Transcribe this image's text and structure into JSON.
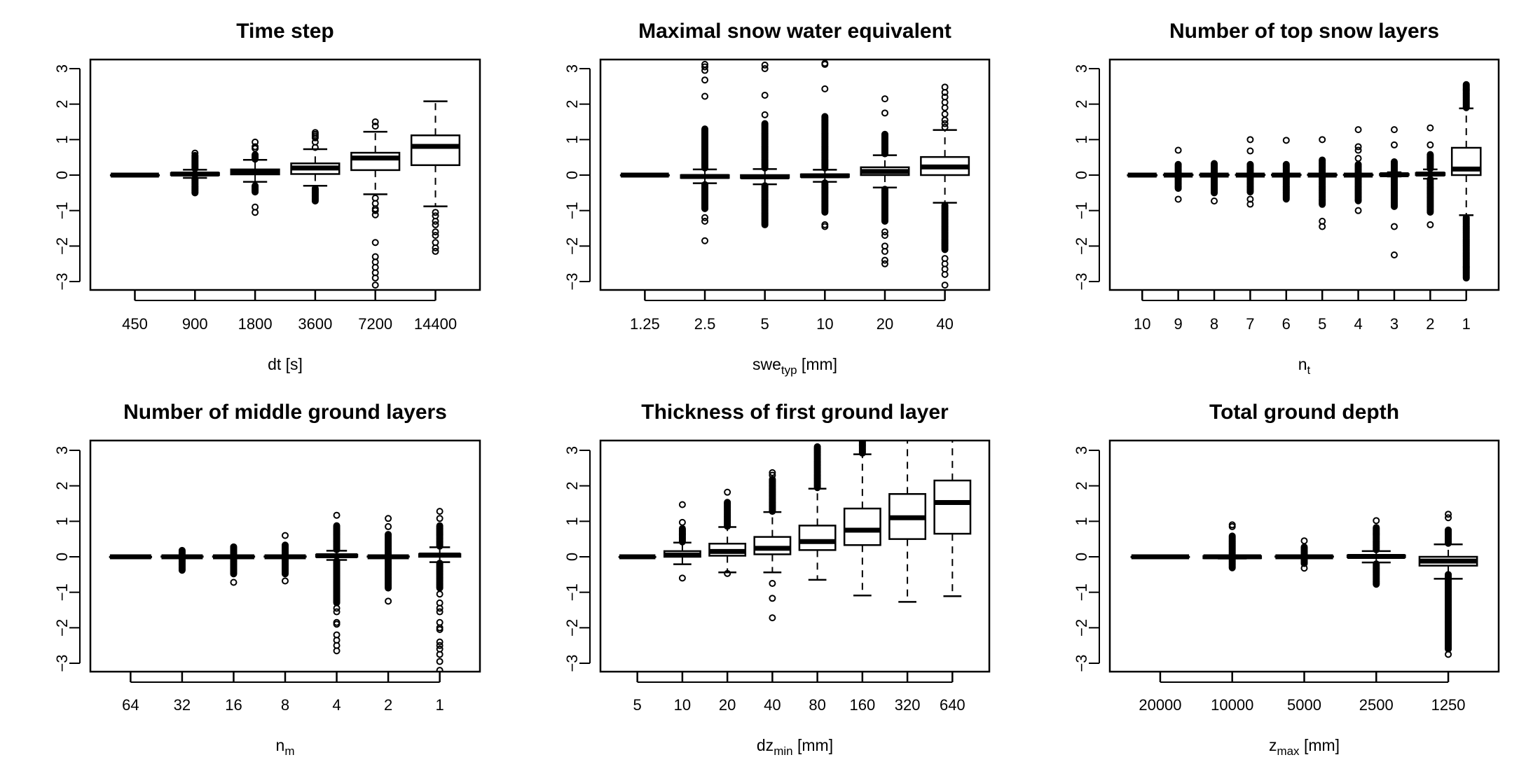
{
  "chart_data": [
    {
      "type": "box",
      "title": "Time step",
      "xlabel": {
        "main": "dt [s]",
        "sub": "",
        "suffix": ""
      },
      "ylim": [
        -3.2,
        3.2
      ],
      "y_ticks": [
        -3,
        -2,
        -1,
        0,
        1,
        2,
        3
      ],
      "y_tick_labels": [
        "−3",
        "−2",
        "−1",
        "0",
        "1",
        "2",
        "3"
      ],
      "categories": [
        "450",
        "900",
        "1800",
        "3600",
        "7200",
        "14400"
      ],
      "boxes": [
        {
          "stats": [
            0,
            0,
            0,
            0,
            0
          ],
          "outliers": [],
          "dense": []
        },
        {
          "stats": [
            -0.08,
            0.0,
            0.03,
            0.06,
            0.15
          ],
          "outliers": [
            0.62
          ],
          "dense": [
            [
              0.18,
              0.58
            ],
            [
              -0.1,
              -0.52
            ]
          ]
        },
        {
          "stats": [
            -0.19,
            0.02,
            0.08,
            0.16,
            0.43
          ],
          "outliers": [
            0.75,
            0.8,
            0.93,
            -0.9,
            -1.05
          ],
          "dense": [
            [
              0.45,
              0.6
            ],
            [
              -0.3,
              -0.5
            ]
          ]
        },
        {
          "stats": [
            -0.3,
            0.03,
            0.2,
            0.33,
            0.73
          ],
          "outliers": [
            0.78,
            0.93,
            1.05,
            1.1,
            1.15,
            1.2
          ],
          "dense": [
            [
              -0.38,
              -0.75
            ]
          ]
        },
        {
          "stats": [
            -0.54,
            0.14,
            0.48,
            0.63,
            1.22
          ],
          "outliers": [
            1.38,
            1.5,
            -0.65,
            -0.8,
            -0.95,
            -1.0,
            -1.12,
            -1.9,
            -2.3,
            -2.45,
            -2.6,
            -2.75,
            -2.9,
            -3.1
          ],
          "dense": []
        },
        {
          "stats": [
            -0.88,
            0.28,
            0.81,
            1.12,
            2.08
          ],
          "outliers": [
            -1.05,
            -1.15,
            -1.3,
            -1.4,
            -1.6,
            -1.7,
            -1.9,
            -2.05,
            -2.15
          ],
          "dense": []
        }
      ]
    },
    {
      "type": "box",
      "title": "Maximal snow water equivalent",
      "xlabel": {
        "main": "swe",
        "sub": "typ",
        "suffix": " [mm]"
      },
      "ylim": [
        -3.2,
        3.2
      ],
      "y_ticks": [
        -3,
        -2,
        -1,
        0,
        1,
        2,
        3
      ],
      "y_tick_labels": [
        "−3",
        "−2",
        "−1",
        "0",
        "1",
        "2",
        "3"
      ],
      "categories": [
        "1.25",
        "2.5",
        "5",
        "10",
        "20",
        "40"
      ],
      "boxes": [
        {
          "stats": [
            0,
            0,
            0,
            0,
            0
          ],
          "outliers": [],
          "dense": []
        },
        {
          "stats": [
            -0.23,
            -0.08,
            -0.04,
            0.0,
            0.16
          ],
          "outliers": [
            2.22,
            2.68,
            2.95,
            3.05,
            3.12,
            -1.2,
            -1.3,
            -1.85
          ],
          "dense": [
            [
              0.2,
              1.3
            ],
            [
              -0.27,
              -0.95
            ]
          ]
        },
        {
          "stats": [
            -0.26,
            -0.08,
            -0.05,
            0.0,
            0.17
          ],
          "outliers": [
            1.7,
            2.25,
            3.0,
            3.1
          ],
          "dense": [
            [
              0.2,
              1.45
            ],
            [
              -0.3,
              -1.4
            ]
          ]
        },
        {
          "stats": [
            -0.19,
            -0.05,
            -0.02,
            0.02,
            0.15
          ],
          "outliers": [
            2.43,
            3.12,
            3.15,
            -1.4,
            -1.45
          ],
          "dense": [
            [
              0.2,
              1.65
            ],
            [
              -0.22,
              -1.05
            ]
          ]
        },
        {
          "stats": [
            -0.35,
            0.0,
            0.1,
            0.22,
            0.56
          ],
          "outliers": [
            1.75,
            2.15,
            -1.6,
            -1.7,
            -2.0,
            -2.15,
            -2.4,
            -2.5
          ],
          "dense": [
            [
              0.6,
              1.15
            ],
            [
              -0.4,
              -1.3
            ]
          ]
        },
        {
          "stats": [
            -0.78,
            0.0,
            0.23,
            0.51,
            1.27
          ],
          "outliers": [
            1.35,
            1.45,
            1.55,
            1.72,
            1.9,
            2.05,
            2.2,
            2.33,
            2.48,
            -2.35,
            -2.5,
            -2.65,
            -2.8,
            -3.1
          ],
          "dense": [
            [
              -0.85,
              -2.1
            ]
          ]
        }
      ]
    },
    {
      "type": "box",
      "title": "Number of top snow layers",
      "xlabel": {
        "main": "n",
        "sub": "t",
        "suffix": ""
      },
      "ylim": [
        -3.2,
        3.2
      ],
      "y_ticks": [
        -3,
        -2,
        -1,
        0,
        1,
        2,
        3
      ],
      "y_tick_labels": [
        "−3",
        "−2",
        "−1",
        "0",
        "1",
        "2",
        "3"
      ],
      "categories": [
        "10",
        "9",
        "8",
        "7",
        "6",
        "5",
        "4",
        "3",
        "2",
        "1"
      ],
      "boxes": [
        {
          "stats": [
            0,
            0,
            0,
            0,
            0
          ],
          "outliers": [],
          "dense": []
        },
        {
          "stats": [
            -0.02,
            0,
            0,
            0.01,
            0.03
          ],
          "outliers": [
            0.7,
            -0.68
          ],
          "dense": [
            [
              0.05,
              0.3
            ],
            [
              -0.05,
              -0.4
            ]
          ]
        },
        {
          "stats": [
            -0.02,
            0,
            0,
            0.01,
            0.03
          ],
          "outliers": [
            -0.73
          ],
          "dense": [
            [
              0.05,
              0.35
            ],
            [
              -0.05,
              -0.52
            ]
          ]
        },
        {
          "stats": [
            -0.02,
            0,
            0,
            0.01,
            0.03
          ],
          "outliers": [
            0.68,
            1.0,
            -0.68,
            -0.82
          ],
          "dense": [
            [
              0.05,
              0.3
            ],
            [
              -0.05,
              -0.5
            ]
          ]
        },
        {
          "stats": [
            -0.02,
            0,
            0,
            0.01,
            0.03
          ],
          "outliers": [
            0.98
          ],
          "dense": [
            [
              0.05,
              0.3
            ],
            [
              -0.05,
              -0.7
            ]
          ]
        },
        {
          "stats": [
            -0.02,
            0,
            0,
            0.01,
            0.03
          ],
          "outliers": [
            1.0,
            -1.3,
            -1.45
          ],
          "dense": [
            [
              0.05,
              0.45
            ],
            [
              -0.05,
              -0.85
            ]
          ]
        },
        {
          "stats": [
            -0.02,
            0,
            0,
            0.01,
            0.03
          ],
          "outliers": [
            0.47,
            0.7,
            0.8,
            1.28,
            -1.0
          ],
          "dense": [
            [
              0.05,
              0.3
            ],
            [
              -0.05,
              -0.75
            ]
          ]
        },
        {
          "stats": [
            -0.04,
            0,
            0.01,
            0.03,
            0.08
          ],
          "outliers": [
            0.85,
            1.28,
            -1.45,
            -2.25
          ],
          "dense": [
            [
              0.1,
              0.4
            ],
            [
              -0.06,
              -0.9
            ]
          ]
        },
        {
          "stats": [
            -0.1,
            0.0,
            0.03,
            0.06,
            0.16
          ],
          "outliers": [
            0.85,
            1.33,
            -1.4
          ],
          "dense": [
            [
              0.18,
              0.6
            ],
            [
              -0.12,
              -1.05
            ]
          ]
        },
        {
          "stats": [
            -1.13,
            0.0,
            0.17,
            0.77,
            1.88
          ],
          "outliers": [],
          "dense": [
            [
              1.9,
              2.55
            ],
            [
              -1.2,
              -2.9
            ]
          ]
        }
      ]
    },
    {
      "type": "box",
      "title": "Number of middle ground layers",
      "xlabel": {
        "main": "n",
        "sub": "m",
        "suffix": ""
      },
      "ylim": [
        -3.2,
        3.2
      ],
      "y_ticks": [
        -3,
        -2,
        -1,
        0,
        1,
        2,
        3
      ],
      "y_tick_labels": [
        "−3",
        "−2",
        "−1",
        "0",
        "1",
        "2",
        "3"
      ],
      "categories": [
        "64",
        "32",
        "16",
        "8",
        "4",
        "2",
        "1"
      ],
      "boxes": [
        {
          "stats": [
            0,
            0,
            0,
            0,
            0
          ],
          "outliers": [],
          "dense": []
        },
        {
          "stats": [
            -0.01,
            0,
            0,
            0.01,
            0.02
          ],
          "outliers": [],
          "dense": [
            [
              0.03,
              0.18
            ],
            [
              -0.03,
              -0.4
            ]
          ]
        },
        {
          "stats": [
            -0.01,
            0,
            0,
            0.01,
            0.02
          ],
          "outliers": [
            -0.72
          ],
          "dense": [
            [
              0.03,
              0.3
            ],
            [
              -0.03,
              -0.5
            ]
          ]
        },
        {
          "stats": [
            -0.01,
            0,
            0,
            0.01,
            0.02
          ],
          "outliers": [
            0.6,
            -0.68
          ],
          "dense": [
            [
              0.03,
              0.35
            ],
            [
              -0.03,
              -0.5
            ]
          ]
        },
        {
          "stats": [
            -0.09,
            0.0,
            0.03,
            0.06,
            0.17
          ],
          "outliers": [
            1.17,
            -1.45,
            -1.55,
            -1.85,
            -1.9,
            -2.2,
            -2.35,
            -2.5,
            -2.65
          ],
          "dense": [
            [
              0.2,
              0.9
            ],
            [
              -0.12,
              -1.3
            ]
          ]
        },
        {
          "stats": [
            -0.01,
            0,
            0,
            0.01,
            0.02
          ],
          "outliers": [
            0.85,
            1.08,
            -1.25
          ],
          "dense": [
            [
              0.03,
              0.65
            ],
            [
              -0.03,
              -0.9
            ]
          ]
        },
        {
          "stats": [
            -0.15,
            0.0,
            0.05,
            0.08,
            0.27
          ],
          "outliers": [
            1.08,
            1.28,
            -1.05,
            -1.3,
            -1.45,
            -1.55,
            -1.85,
            -2.0,
            -2.05,
            -2.4,
            -2.5,
            -2.6,
            -2.75,
            -2.95,
            -3.2
          ],
          "dense": [
            [
              0.3,
              0.9
            ],
            [
              -0.18,
              -0.9
            ]
          ]
        }
      ]
    },
    {
      "type": "box",
      "title": "Thickness of first ground layer",
      "xlabel": {
        "main": "dz",
        "sub": "min",
        "suffix": " [mm]"
      },
      "ylim": [
        -3.2,
        3.2
      ],
      "y_ticks": [
        -3,
        -2,
        -1,
        0,
        1,
        2,
        3
      ],
      "y_tick_labels": [
        "−3",
        "−2",
        "−1",
        "0",
        "1",
        "2",
        "3"
      ],
      "categories": [
        "5",
        "10",
        "20",
        "40",
        "80",
        "160",
        "320",
        "640"
      ],
      "boxes": [
        {
          "stats": [
            0,
            0,
            0,
            0,
            0
          ],
          "outliers": [],
          "dense": []
        },
        {
          "stats": [
            -0.21,
            0.0,
            0.05,
            0.16,
            0.4
          ],
          "outliers": [
            0.97,
            1.47,
            -0.6
          ],
          "dense": [
            [
              0.42,
              0.8
            ]
          ]
        },
        {
          "stats": [
            -0.44,
            0.03,
            0.15,
            0.37,
            0.84
          ],
          "outliers": [
            1.82,
            -0.47
          ],
          "dense": [
            [
              0.86,
              1.55
            ]
          ]
        },
        {
          "stats": [
            -0.44,
            0.07,
            0.24,
            0.56,
            1.26
          ],
          "outliers": [
            2.3,
            2.37,
            -0.75,
            -1.17,
            -1.72
          ],
          "dense": [
            [
              1.28,
              2.2
            ]
          ]
        },
        {
          "stats": [
            -0.65,
            0.19,
            0.43,
            0.88,
            1.92
          ],
          "outliers": [],
          "dense": [
            [
              1.95,
              3.1
            ]
          ]
        },
        {
          "stats": [
            -1.09,
            0.33,
            0.75,
            1.36,
            2.89
          ],
          "outliers": [],
          "dense": [
            [
              2.92,
              3.25
            ]
          ]
        },
        {
          "stats": [
            -1.27,
            0.5,
            1.1,
            1.77,
            3.5
          ],
          "outliers": [],
          "dense": []
        },
        {
          "stats": [
            -1.11,
            0.65,
            1.53,
            2.15,
            3.5
          ],
          "outliers": [],
          "dense": []
        }
      ]
    },
    {
      "type": "box",
      "title": "Total ground depth",
      "xlabel": {
        "main": "z",
        "sub": "max",
        "suffix": " [mm]"
      },
      "ylim": [
        -3.2,
        3.2
      ],
      "y_ticks": [
        -3,
        -2,
        -1,
        0,
        1,
        2,
        3
      ],
      "y_tick_labels": [
        "−3",
        "−2",
        "−1",
        "0",
        "1",
        "2",
        "3"
      ],
      "categories": [
        "20000",
        "10000",
        "5000",
        "2500",
        "1250"
      ],
      "boxes": [
        {
          "stats": [
            0,
            0,
            0,
            0,
            0
          ],
          "outliers": [],
          "dense": []
        },
        {
          "stats": [
            -0.05,
            -0.04,
            0.0,
            0.02,
            0.04
          ],
          "outliers": [
            0.85,
            0.9
          ],
          "dense": [
            [
              0.06,
              0.6
            ],
            [
              -0.06,
              -0.32
            ]
          ]
        },
        {
          "stats": [
            -0.02,
            0,
            0,
            0.01,
            0.03
          ],
          "outliers": [
            0.45,
            -0.32
          ],
          "dense": [
            [
              0.05,
              0.28
            ],
            [
              -0.04,
              -0.2
            ]
          ]
        },
        {
          "stats": [
            -0.16,
            -0.01,
            0.01,
            0.04,
            0.16
          ],
          "outliers": [
            1.02
          ],
          "dense": [
            [
              0.2,
              0.85
            ],
            [
              -0.2,
              -0.78
            ]
          ]
        },
        {
          "stats": [
            -0.62,
            -0.25,
            -0.12,
            0.0,
            0.35
          ],
          "outliers": [
            1.1,
            1.2,
            -2.75
          ],
          "dense": [
            [
              0.38,
              0.78
            ],
            [
              -0.5,
              -2.6
            ]
          ]
        }
      ]
    }
  ]
}
